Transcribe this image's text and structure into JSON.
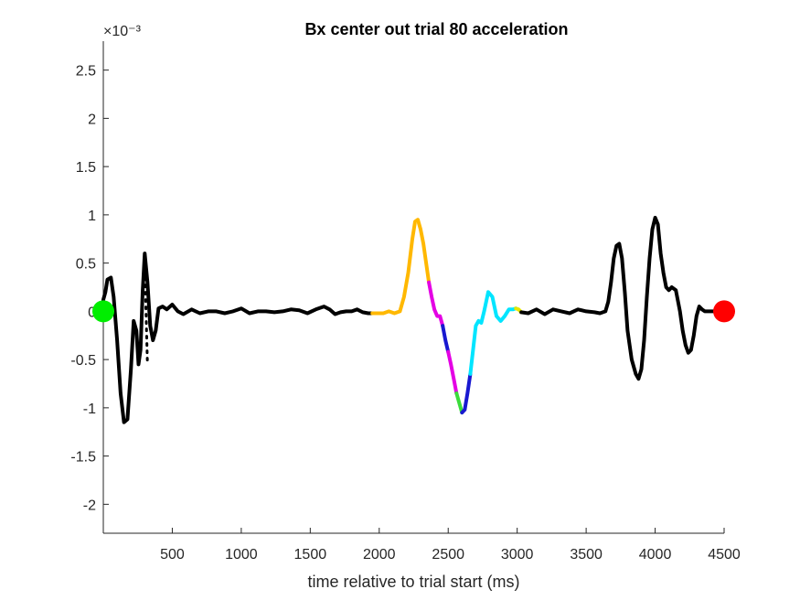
{
  "chart_data": {
    "type": "line",
    "title": "Bx  center out trial 80 acceleration",
    "xlabel": "time relative to trial start (ms)",
    "ylabel": "",
    "xlim": [
      0,
      4500
    ],
    "ylim": [
      -2.3,
      2.8
    ],
    "y_scale_exponent": "×10⁻³",
    "x_ticks": [
      500,
      1000,
      1500,
      2000,
      2500,
      3000,
      3500,
      4000,
      4500
    ],
    "y_ticks": [
      -2,
      -1.5,
      -1,
      -0.5,
      0,
      0.5,
      1,
      1.5,
      2,
      2.5
    ],
    "grid": false,
    "series": [
      {
        "color": "#000000",
        "x": [
          0,
          15,
          30,
          55,
          75,
          100,
          125,
          150,
          175,
          200,
          220,
          240,
          255,
          270,
          285,
          300,
          320,
          340,
          360,
          380,
          400,
          430,
          460,
          500,
          540,
          580,
          640,
          700,
          760,
          820,
          880,
          940,
          1000,
          1060,
          1120,
          1180,
          1240,
          1300,
          1360,
          1420,
          1480,
          1540,
          1600,
          1640,
          1680,
          1720,
          1760,
          1800,
          1840,
          1880,
          1920,
          1950
        ],
        "y": [
          0.12,
          0.2,
          0.33,
          0.35,
          0.15,
          -0.3,
          -0.85,
          -1.15,
          -1.12,
          -0.6,
          -0.1,
          -0.2,
          -0.55,
          -0.4,
          0.2,
          0.6,
          0.3,
          -0.15,
          -0.3,
          -0.2,
          0.03,
          0.05,
          0.02,
          0.07,
          0.0,
          -0.03,
          0.02,
          -0.02,
          0.0,
          0.0,
          -0.02,
          0.0,
          0.03,
          -0.02,
          0.0,
          0.0,
          -0.01,
          0.0,
          0.02,
          0.01,
          -0.02,
          0.02,
          0.05,
          0.02,
          -0.03,
          -0.01,
          0.0,
          0.0,
          0.02,
          -0.01,
          -0.02,
          -0.02
        ]
      },
      {
        "color": "#FFB800",
        "x": [
          1950,
          1990,
          2030,
          2070,
          2110,
          2150,
          2180,
          2210,
          2240,
          2260,
          2280,
          2300,
          2320,
          2340,
          2360
        ],
        "y": [
          -0.02,
          -0.02,
          -0.02,
          0.0,
          -0.02,
          0.0,
          0.15,
          0.4,
          0.75,
          0.93,
          0.95,
          0.85,
          0.7,
          0.5,
          0.3
        ]
      },
      {
        "color": "#E400E4",
        "x": [
          2360,
          2380,
          2400,
          2420,
          2440,
          2460
        ],
        "y": [
          0.3,
          0.15,
          0.02,
          -0.05,
          -0.05,
          -0.15
        ]
      },
      {
        "color": "#1818D0",
        "x": [
          2460,
          2480,
          2500
        ],
        "y": [
          -0.15,
          -0.3,
          -0.42
        ]
      },
      {
        "color": "#E400E4",
        "x": [
          2500,
          2520,
          2540,
          2560
        ],
        "y": [
          -0.42,
          -0.55,
          -0.7,
          -0.85
        ]
      },
      {
        "color": "#3CDC3C",
        "x": [
          2560,
          2580,
          2600
        ],
        "y": [
          -0.85,
          -0.95,
          -1.05
        ]
      },
      {
        "color": "#1818D0",
        "x": [
          2600,
          2620,
          2640,
          2660
        ],
        "y": [
          -1.05,
          -1.02,
          -0.85,
          -0.65
        ]
      },
      {
        "color": "#00E5FF",
        "x": [
          2660,
          2680,
          2700,
          2720,
          2740,
          2760,
          2790,
          2820,
          2850,
          2880,
          2910,
          2940,
          2970,
          2990
        ],
        "y": [
          -0.65,
          -0.4,
          -0.15,
          -0.1,
          -0.12,
          0.0,
          0.2,
          0.15,
          -0.05,
          -0.1,
          -0.05,
          0.02,
          0.02,
          0.03
        ]
      },
      {
        "color": "#E6E600",
        "x": [
          2990,
          3010,
          3030
        ],
        "y": [
          0.03,
          0.02,
          -0.01
        ]
      },
      {
        "color": "#000000",
        "x": [
          3030,
          3080,
          3140,
          3200,
          3260,
          3320,
          3380,
          3440,
          3500,
          3560,
          3600,
          3640,
          3660,
          3680,
          3700,
          3720,
          3740,
          3760,
          3780,
          3800,
          3830,
          3860,
          3880,
          3900,
          3920,
          3940,
          3960,
          3980,
          4000,
          4020,
          4040,
          4060,
          4080,
          4100,
          4120,
          4150,
          4180,
          4200,
          4220,
          4240,
          4260,
          4280,
          4300,
          4320,
          4340,
          4360,
          4380,
          4400,
          4420,
          4440,
          4460,
          4480,
          4500
        ],
        "y": [
          -0.01,
          -0.02,
          0.02,
          -0.03,
          0.02,
          0.0,
          -0.02,
          0.02,
          0.0,
          -0.01,
          -0.02,
          0.0,
          0.1,
          0.3,
          0.55,
          0.68,
          0.7,
          0.55,
          0.2,
          -0.2,
          -0.5,
          -0.65,
          -0.7,
          -0.6,
          -0.3,
          0.15,
          0.55,
          0.85,
          0.97,
          0.9,
          0.6,
          0.4,
          0.25,
          0.22,
          0.25,
          0.22,
          0.0,
          -0.2,
          -0.35,
          -0.43,
          -0.4,
          -0.25,
          -0.05,
          0.05,
          0.02,
          0.0,
          0.0,
          0.0,
          0.0,
          0.0,
          0.0,
          0.0,
          0.0
        ]
      }
    ],
    "markers": [
      {
        "x": 0,
        "y": 0,
        "color": "#00EE00"
      },
      {
        "x": 4500,
        "y": 0,
        "color": "#FF0000"
      }
    ],
    "dotted_segment": {
      "color": "#000000",
      "x_start": 300,
      "x_end": 320,
      "y_start": 0.5,
      "y_end": -0.55
    }
  }
}
